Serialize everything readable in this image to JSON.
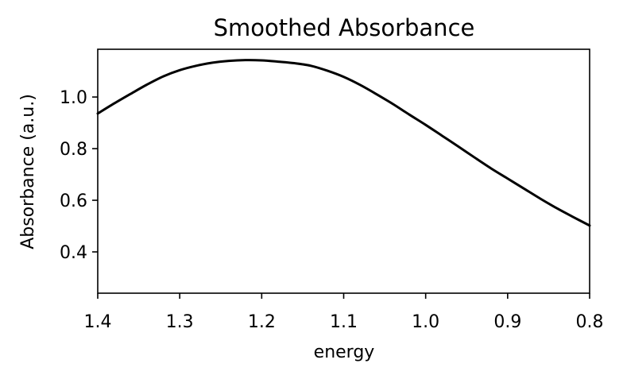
{
  "chart_data": {
    "type": "line",
    "title": "Smoothed Absorbance",
    "xlabel": "energy",
    "ylabel": "Absorbance (a.u.)",
    "xlim": [
      1.4,
      0.8
    ],
    "ylim": [
      0.24,
      1.185
    ],
    "x_inverted": true,
    "grid": false,
    "legend": "none",
    "x_ticks": [
      1.4,
      1.3,
      1.2,
      1.1,
      1.0,
      0.9,
      0.8
    ],
    "x_tick_labels": [
      "1.4",
      "1.3",
      "1.2",
      "1.1",
      "1.0",
      "0.9",
      "0.8"
    ],
    "y_ticks": [
      0.4,
      0.6,
      0.8,
      1.0
    ],
    "y_tick_labels": [
      "0.4",
      "0.6",
      "0.8",
      "1.0"
    ],
    "series": [
      {
        "color": "#000000",
        "x": [
          1.4,
          1.38,
          1.36,
          1.34,
          1.32,
          1.3,
          1.28,
          1.26,
          1.24,
          1.22,
          1.2,
          1.18,
          1.16,
          1.14,
          1.12,
          1.1,
          1.08,
          1.06,
          1.04,
          1.02,
          1.0,
          0.98,
          0.96,
          0.94,
          0.92,
          0.9,
          0.88,
          0.86,
          0.84,
          0.82,
          0.8
        ],
        "y": [
          0.936,
          0.975,
          1.012,
          1.048,
          1.08,
          1.104,
          1.121,
          1.133,
          1.14,
          1.143,
          1.142,
          1.137,
          1.131,
          1.121,
          1.102,
          1.078,
          1.047,
          1.011,
          0.973,
          0.932,
          0.892,
          0.85,
          0.808,
          0.765,
          0.723,
          0.684,
          0.645,
          0.606,
          0.569,
          0.535,
          0.502
        ]
      }
    ]
  }
}
